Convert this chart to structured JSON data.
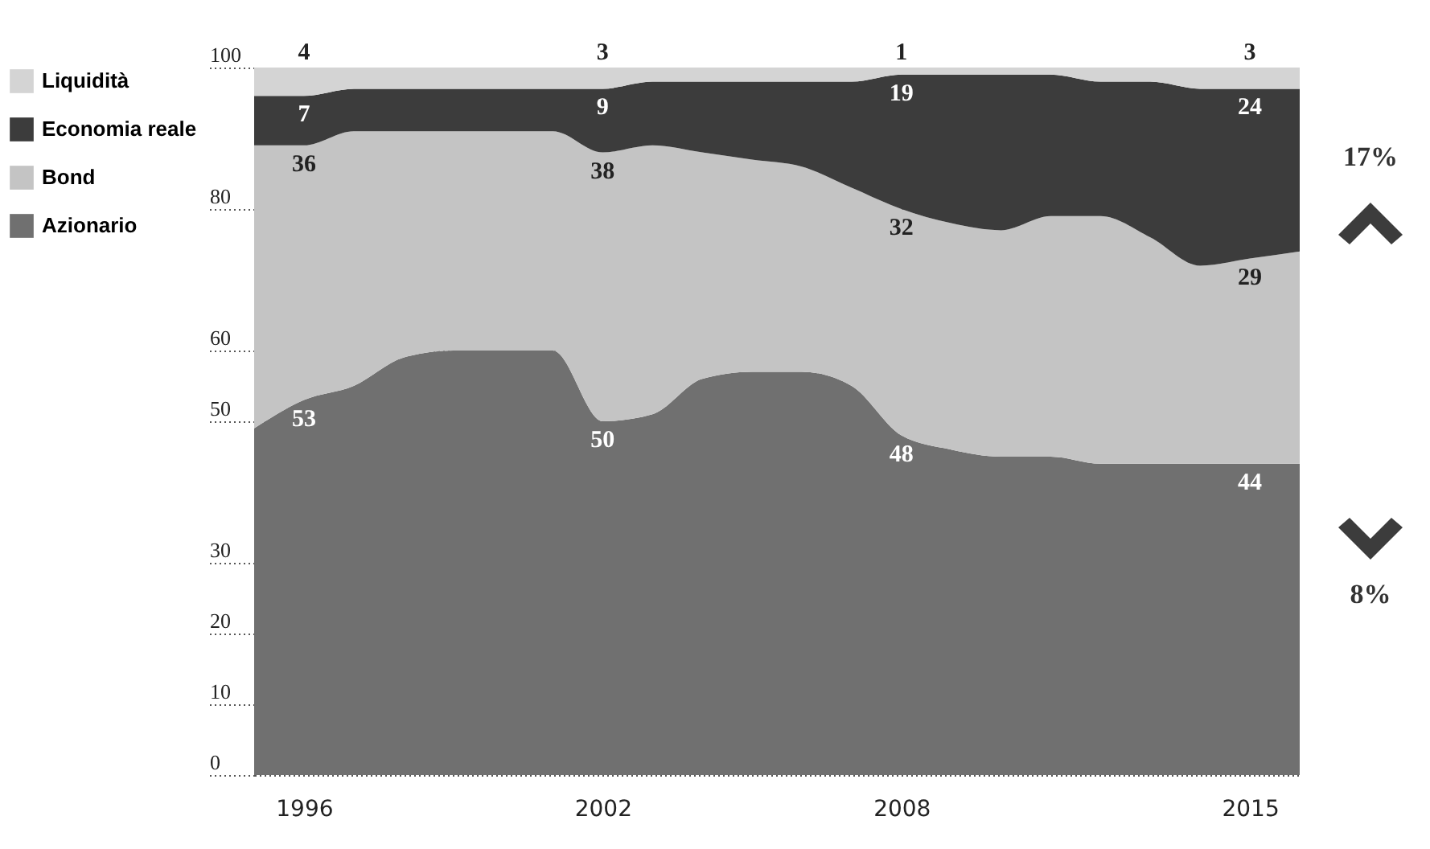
{
  "chart_data": {
    "type": "area",
    "stacked": true,
    "x": [
      1995,
      1996,
      1997,
      1998,
      1999,
      2000,
      2001,
      2002,
      2003,
      2004,
      2005,
      2006,
      2007,
      2008,
      2009,
      2010,
      2011,
      2012,
      2013,
      2014,
      2015,
      2016
    ],
    "series": [
      {
        "name": "Azionario",
        "color": "#707070",
        "values": [
          49,
          53,
          55,
          59,
          60,
          60,
          60,
          50,
          51,
          56,
          57,
          57,
          55,
          48,
          46,
          45,
          45,
          44,
          44,
          44,
          44,
          44
        ],
        "value_labels": [
          null,
          "53",
          null,
          null,
          null,
          null,
          null,
          "50",
          null,
          null,
          null,
          null,
          null,
          "48",
          null,
          null,
          null,
          null,
          null,
          null,
          "44",
          null
        ]
      },
      {
        "name": "Bond",
        "color": "#c4c4c4",
        "values": [
          40,
          36,
          36,
          32,
          31,
          31,
          31,
          38,
          38,
          32,
          30,
          29,
          28,
          32,
          32,
          32,
          34,
          35,
          32,
          28,
          29,
          30
        ],
        "value_labels": [
          null,
          "36",
          null,
          null,
          null,
          null,
          null,
          "38",
          null,
          null,
          null,
          null,
          null,
          "32",
          null,
          null,
          null,
          null,
          null,
          null,
          "29",
          null
        ]
      },
      {
        "name": "Economia reale",
        "color": "#3c3c3c",
        "values": [
          7,
          7,
          6,
          6,
          6,
          6,
          6,
          9,
          9,
          10,
          11,
          12,
          15,
          19,
          21,
          22,
          20,
          19,
          22,
          25,
          24,
          23
        ],
        "value_labels": [
          null,
          "7",
          null,
          null,
          null,
          null,
          null,
          "9",
          null,
          null,
          null,
          null,
          null,
          "19",
          null,
          null,
          null,
          null,
          null,
          null,
          "24",
          null
        ]
      },
      {
        "name": "Liquidità",
        "color": "#d4d4d4",
        "values": [
          4,
          4,
          3,
          3,
          3,
          3,
          3,
          3,
          2,
          2,
          2,
          2,
          2,
          1,
          1,
          1,
          1,
          2,
          2,
          3,
          3,
          3
        ],
        "value_labels": [
          null,
          "4",
          null,
          null,
          null,
          null,
          null,
          "3",
          null,
          null,
          null,
          null,
          null,
          "1",
          null,
          null,
          null,
          null,
          null,
          null,
          "3",
          null
        ]
      }
    ],
    "xlim": [
      1995,
      2016
    ],
    "xticks": [
      1996,
      2002,
      2008,
      2015
    ],
    "ylim": [
      0,
      100
    ],
    "yticks": [
      0,
      10,
      20,
      30,
      50,
      60,
      80,
      100
    ],
    "grid": "y",
    "legend": "left",
    "annotations": [
      "17%",
      "8%"
    ]
  }
}
